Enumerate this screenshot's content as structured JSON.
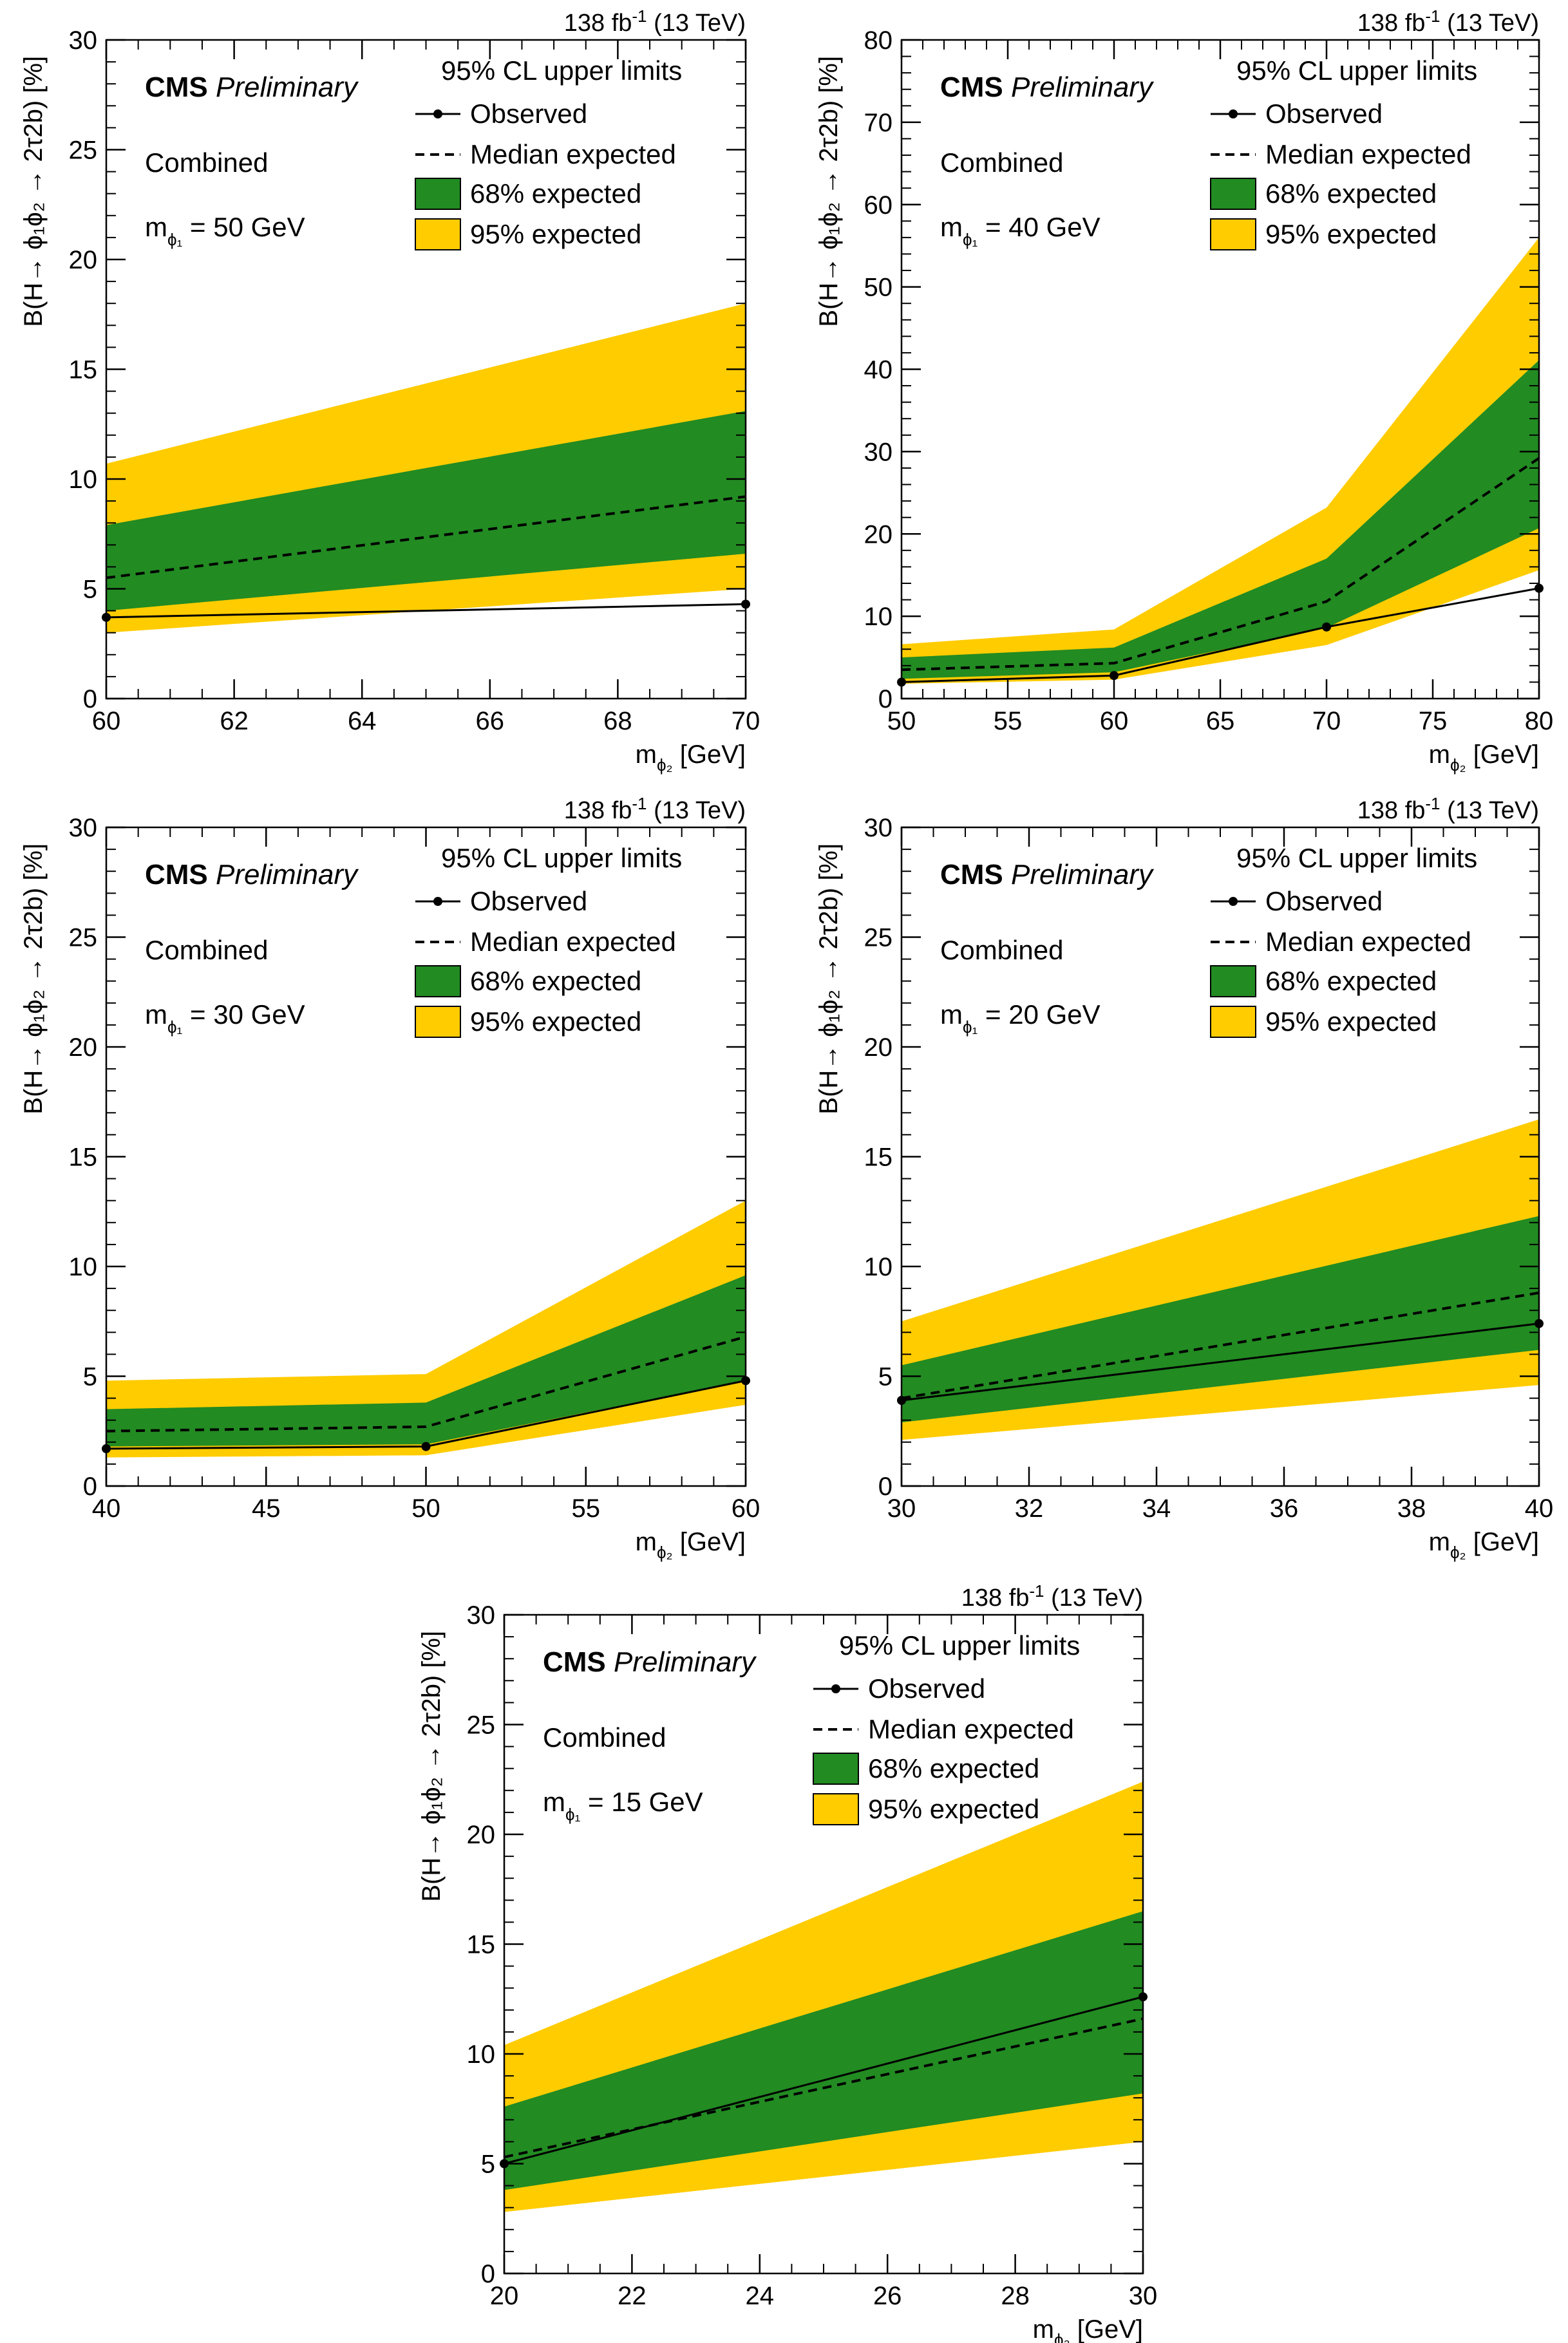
{
  "figure": {
    "legend_title": "95% CL upper limits",
    "legend_observed": "Observed",
    "legend_median": "Median expected",
    "legend_68": "68% expected",
    "legend_95": "95% expected",
    "cms_label": "CMS",
    "preliminary_label": "Preliminary",
    "channel_label": "Combined",
    "lumi_label_main": "138 fb",
    "lumi_label_sup": "-1",
    "lumi_label_energy": "(13 TeV)",
    "ylabel": "B(H→ ϕ₁ϕ₂ → 2τ2b) [%]",
    "xlabel_main": "m",
    "xlabel_sub": "ϕ₂",
    "xlabel_unit": "[GeV]",
    "mphi1_prefix": "m",
    "mphi1_sub": "ϕ₁"
  },
  "colors": {
    "band68": "#228b22",
    "band95": "#ffcc00",
    "line": "#000000"
  },
  "chart_data": [
    {
      "type": "line",
      "mphi1_label": "= 50 GeV",
      "xlim": [
        60,
        70
      ],
      "ylim": [
        0,
        30
      ],
      "xticks": [
        60,
        62,
        64,
        66,
        68,
        70
      ],
      "yticks": [
        0,
        5,
        10,
        15,
        20,
        25,
        30
      ],
      "x": [
        60,
        70
      ],
      "observed": [
        3.7,
        4.3
      ],
      "median": [
        5.5,
        9.2
      ],
      "band68_low": [
        4.0,
        6.6
      ],
      "band68_high": [
        7.9,
        13.1
      ],
      "band95_low": [
        3.0,
        5.0
      ],
      "band95_high": [
        10.7,
        18.0
      ]
    },
    {
      "type": "line",
      "mphi1_label": "= 40 GeV",
      "xlim": [
        50,
        80
      ],
      "ylim": [
        0,
        80
      ],
      "xticks": [
        50,
        55,
        60,
        65,
        70,
        75,
        80
      ],
      "yticks": [
        0,
        10,
        20,
        30,
        40,
        50,
        60,
        70,
        80
      ],
      "x": [
        50,
        60,
        70,
        80
      ],
      "observed": [
        2.0,
        2.8,
        8.7,
        13.4
      ],
      "median": [
        3.5,
        4.3,
        11.8,
        29.2
      ],
      "band68_low": [
        2.4,
        3.2,
        8.6,
        20.7
      ],
      "band68_high": [
        5.0,
        6.2,
        17.0,
        41.1
      ],
      "band95_low": [
        1.8,
        2.3,
        6.5,
        15.6
      ],
      "band95_high": [
        6.6,
        8.4,
        23.2,
        56.0
      ]
    },
    {
      "type": "line",
      "mphi1_label": "= 30 GeV",
      "xlim": [
        40,
        60
      ],
      "ylim": [
        0,
        30
      ],
      "xticks": [
        40,
        45,
        50,
        55,
        60
      ],
      "yticks": [
        0,
        5,
        10,
        15,
        20,
        25,
        30
      ],
      "x": [
        40,
        50,
        60
      ],
      "observed": [
        1.7,
        1.8,
        4.8
      ],
      "median": [
        2.5,
        2.7,
        6.8
      ],
      "band68_low": [
        1.8,
        1.9,
        4.8
      ],
      "band68_high": [
        3.5,
        3.8,
        9.6
      ],
      "band95_low": [
        1.3,
        1.4,
        3.7
      ],
      "band95_high": [
        4.8,
        5.1,
        13.0
      ]
    },
    {
      "type": "line",
      "mphi1_label": "= 20 GeV",
      "xlim": [
        30,
        40
      ],
      "ylim": [
        0,
        30
      ],
      "xticks": [
        30,
        32,
        34,
        36,
        38,
        40
      ],
      "yticks": [
        0,
        5,
        10,
        15,
        20,
        25,
        30
      ],
      "x": [
        30,
        40
      ],
      "observed": [
        3.9,
        7.4
      ],
      "median": [
        4.0,
        8.8
      ],
      "band68_low": [
        2.9,
        6.2
      ],
      "band68_high": [
        5.5,
        12.3
      ],
      "band95_low": [
        2.1,
        4.6
      ],
      "band95_high": [
        7.5,
        16.7
      ]
    },
    {
      "type": "line",
      "mphi1_label": "= 15 GeV",
      "xlim": [
        20,
        30
      ],
      "ylim": [
        0,
        30
      ],
      "xticks": [
        20,
        22,
        24,
        26,
        28,
        30
      ],
      "yticks": [
        0,
        5,
        10,
        15,
        20,
        25,
        30
      ],
      "x": [
        20,
        30
      ],
      "observed": [
        5.0,
        12.6
      ],
      "median": [
        5.3,
        11.6
      ],
      "band68_low": [
        3.8,
        8.2
      ],
      "band68_high": [
        7.6,
        16.5
      ],
      "band95_low": [
        2.8,
        6.0
      ],
      "band95_high": [
        10.4,
        22.4
      ]
    }
  ]
}
